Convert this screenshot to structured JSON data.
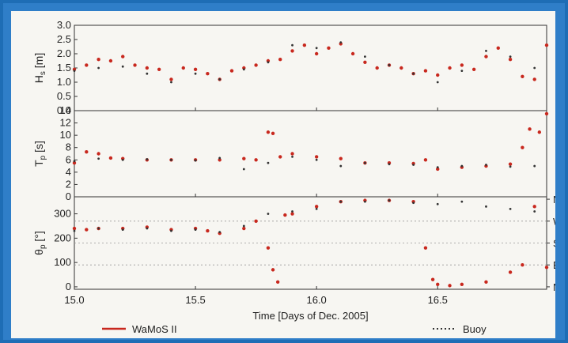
{
  "chart_data": {
    "type": "scatter",
    "xlabel": "Time [Days of Dec. 2005]",
    "x_ticks": [
      "15.0",
      "15.5",
      "16.0",
      "16.5"
    ],
    "xlim": [
      15.0,
      16.95
    ],
    "legend": [
      {
        "name": "WaMoS II",
        "color": "#c8281e",
        "style": "solid"
      },
      {
        "name": "Buoy",
        "color": "#333333",
        "style": "dotted"
      }
    ],
    "panels": [
      {
        "id": "hs",
        "ylabel": "H_s [m]",
        "ylim": [
          0,
          3.0
        ],
        "y_ticks": [
          "0.0",
          "0.5",
          "1.0",
          "1.5",
          "2.0",
          "2.5",
          "3.0"
        ],
        "series": [
          {
            "name": "WaMoS II",
            "x": [
              15.0,
              15.05,
              15.1,
              15.15,
              15.2,
              15.25,
              15.3,
              15.35,
              15.4,
              15.45,
              15.5,
              15.55,
              15.6,
              15.65,
              15.7,
              15.75,
              15.8,
              15.85,
              15.9,
              15.95,
              16.0,
              16.05,
              16.1,
              16.15,
              16.2,
              16.25,
              16.3,
              16.35,
              16.4,
              16.45,
              16.5,
              16.55,
              16.6,
              16.65,
              16.7,
              16.75,
              16.8,
              16.85,
              16.9,
              16.95
            ],
            "y": [
              1.45,
              1.6,
              1.8,
              1.75,
              1.9,
              1.6,
              1.5,
              1.45,
              1.1,
              1.5,
              1.45,
              1.3,
              1.1,
              1.4,
              1.5,
              1.6,
              1.75,
              1.8,
              2.1,
              2.3,
              2.0,
              2.2,
              2.35,
              2.0,
              1.7,
              1.5,
              1.6,
              1.5,
              1.3,
              1.4,
              1.25,
              1.5,
              1.6,
              1.45,
              1.9,
              2.2,
              1.8,
              1.2,
              1.1,
              2.3
            ]
          },
          {
            "name": "Buoy",
            "x": [
              15.0,
              15.1,
              15.2,
              15.3,
              15.4,
              15.5,
              15.6,
              15.7,
              15.8,
              15.9,
              16.0,
              16.1,
              16.2,
              16.3,
              16.4,
              16.5,
              16.6,
              16.7,
              16.8,
              16.9
            ],
            "y": [
              1.4,
              1.5,
              1.55,
              1.3,
              1.0,
              1.3,
              1.1,
              1.45,
              1.7,
              2.3,
              2.2,
              2.4,
              1.9,
              1.6,
              1.3,
              1.0,
              1.4,
              2.1,
              1.9,
              1.5
            ]
          }
        ]
      },
      {
        "id": "tp",
        "ylabel": "T_p [s]",
        "ylim": [
          0,
          14
        ],
        "y_ticks": [
          "0",
          "2",
          "4",
          "6",
          "8",
          "10",
          "12",
          "14"
        ],
        "series": [
          {
            "name": "WaMoS II",
            "x": [
              15.0,
              15.05,
              15.1,
              15.15,
              15.2,
              15.3,
              15.4,
              15.5,
              15.6,
              15.7,
              15.75,
              15.8,
              15.82,
              15.85,
              15.9,
              16.0,
              16.1,
              16.2,
              16.3,
              16.4,
              16.45,
              16.5,
              16.6,
              16.7,
              16.8,
              16.85,
              16.88,
              16.92,
              16.95
            ],
            "y": [
              5.5,
              7.3,
              7.0,
              6.3,
              6.2,
              6.0,
              6.0,
              6.0,
              6.0,
              6.2,
              6.0,
              10.5,
              10.3,
              6.5,
              7.0,
              6.5,
              6.2,
              5.5,
              5.5,
              5.4,
              6.0,
              4.5,
              4.8,
              5.0,
              5.3,
              8.0,
              11.0,
              10.5,
              13.5
            ]
          },
          {
            "name": "Buoy",
            "x": [
              15.0,
              15.1,
              15.2,
              15.3,
              15.4,
              15.5,
              15.6,
              15.7,
              15.8,
              15.9,
              16.0,
              16.1,
              16.2,
              16.3,
              16.4,
              16.5,
              16.6,
              16.7,
              16.8,
              16.9
            ],
            "y": [
              5.8,
              6.2,
              6.0,
              6.1,
              6.0,
              5.9,
              6.3,
              4.5,
              5.5,
              6.5,
              6.0,
              5.0,
              5.5,
              5.3,
              5.2,
              4.8,
              5.0,
              5.2,
              4.9,
              5.0
            ]
          }
        ]
      },
      {
        "id": "theta",
        "ylabel": "θ_p [°]",
        "ylim": [
          -10,
          370
        ],
        "y_ticks": [
          "0",
          "100",
          "200",
          "300"
        ],
        "right_ticks": [
          "N",
          "W",
          "S",
          "E",
          "N"
        ],
        "series": [
          {
            "name": "WaMoS II",
            "x": [
              15.0,
              15.05,
              15.1,
              15.2,
              15.3,
              15.4,
              15.5,
              15.55,
              15.6,
              15.7,
              15.75,
              15.8,
              15.82,
              15.84,
              15.87,
              15.9,
              16.0,
              16.1,
              16.2,
              16.3,
              16.4,
              16.45,
              16.48,
              16.5,
              16.55,
              16.6,
              16.7,
              16.8,
              16.85,
              16.9,
              16.95
            ],
            "y": [
              240,
              235,
              240,
              240,
              245,
              235,
              240,
              230,
              220,
              240,
              270,
              160,
              70,
              20,
              295,
              300,
              330,
              350,
              355,
              355,
              350,
              160,
              30,
              10,
              5,
              10,
              20,
              60,
              90,
              330,
              80
            ]
          },
          {
            "name": "Buoy",
            "x": [
              15.0,
              15.1,
              15.2,
              15.3,
              15.4,
              15.5,
              15.6,
              15.7,
              15.8,
              15.9,
              16.0,
              16.1,
              16.2,
              16.3,
              16.4,
              16.5,
              16.6,
              16.7,
              16.8,
              16.9
            ],
            "y": [
              230,
              240,
              235,
              240,
              230,
              235,
              225,
              250,
              300,
              310,
              320,
              350,
              350,
              355,
              345,
              340,
              350,
              330,
              320,
              310
            ]
          }
        ]
      }
    ]
  }
}
